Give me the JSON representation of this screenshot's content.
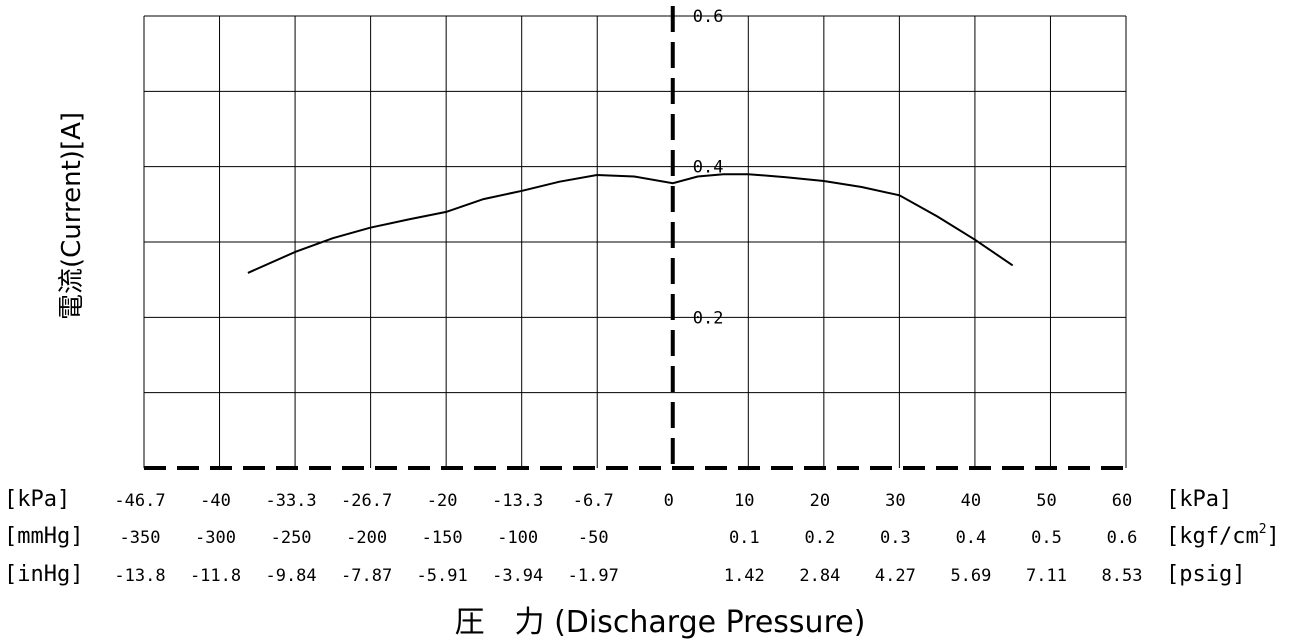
{
  "chart_data": {
    "type": "line",
    "ylabel": "電流(Current)[A]",
    "xlabel": "圧　力 (Discharge Pressure)",
    "ylim": [
      0,
      0.6
    ],
    "y_ticks": [
      "0.6",
      "0.4",
      "0.2"
    ],
    "grid": true,
    "units": {
      "kpa_left": "[kPa]",
      "kpa_right": "[kPa]",
      "mmhg": "[mmHg]",
      "kgf": "[kgf/cm",
      "kgf_sup": "2",
      "kgf_close": "]",
      "inhg": "[inHg]",
      "psig": "[psig]"
    },
    "row_kpa": [
      "-46.7",
      "-40",
      "-33.3",
      "-26.7",
      "-20",
      "-13.3",
      "-6.7",
      "0",
      "10",
      "20",
      "30",
      "40",
      "50",
      "60"
    ],
    "row_mmhg": [
      "-350",
      "-300",
      "-250",
      "-200",
      "-150",
      "-100",
      "-50",
      "",
      "0.1",
      "0.2",
      "0.3",
      "0.4",
      "0.5",
      "0.6"
    ],
    "row_inhg": [
      "-13.8",
      "-11.8",
      "-9.84",
      "-7.87",
      "-5.91",
      "-3.94",
      "-1.97",
      "",
      "1.42",
      "2.84",
      "4.27",
      "5.69",
      "7.11",
      "8.53"
    ],
    "series": [
      {
        "x": [
          -37.5,
          -33.3,
          -30,
          -26.7,
          -23.3,
          -20,
          -16.7,
          -13.3,
          -10,
          -6.7,
          -3.4,
          0,
          3.3,
          6.7,
          10,
          15,
          20,
          25,
          30,
          35,
          40,
          45
        ],
        "y": [
          0.259,
          0.287,
          0.305,
          0.319,
          0.33,
          0.34,
          0.357,
          0.368,
          0.38,
          0.389,
          0.387,
          0.378,
          0.387,
          0.39,
          0.39,
          0.386,
          0.381,
          0.373,
          0.362,
          0.334,
          0.303,
          0.269
        ]
      }
    ]
  }
}
